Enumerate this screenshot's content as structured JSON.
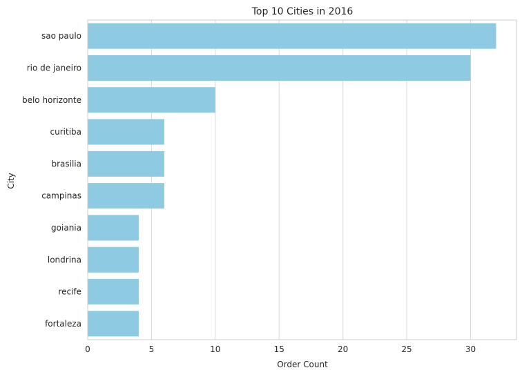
{
  "chart_data": {
    "type": "bar",
    "orientation": "horizontal",
    "title": "Top 10 Cities in 2016",
    "xlabel": "Order Count",
    "ylabel": "City",
    "categories": [
      "sao paulo",
      "rio de janeiro",
      "belo horizonte",
      "curitiba",
      "brasilia",
      "campinas",
      "goiania",
      "londrina",
      "recife",
      "fortaleza"
    ],
    "values": [
      32,
      30,
      10,
      6,
      6,
      6,
      4,
      4,
      4,
      4
    ],
    "xlim": [
      0,
      33.6
    ],
    "xticks": [
      0,
      5,
      10,
      15,
      20,
      25,
      30
    ],
    "grid": "vertical",
    "legend": "none",
    "colors": {
      "bar": "#8ecae2",
      "grid": "#d9d9d9",
      "spine": "#cccccc",
      "text": "#262626"
    }
  }
}
